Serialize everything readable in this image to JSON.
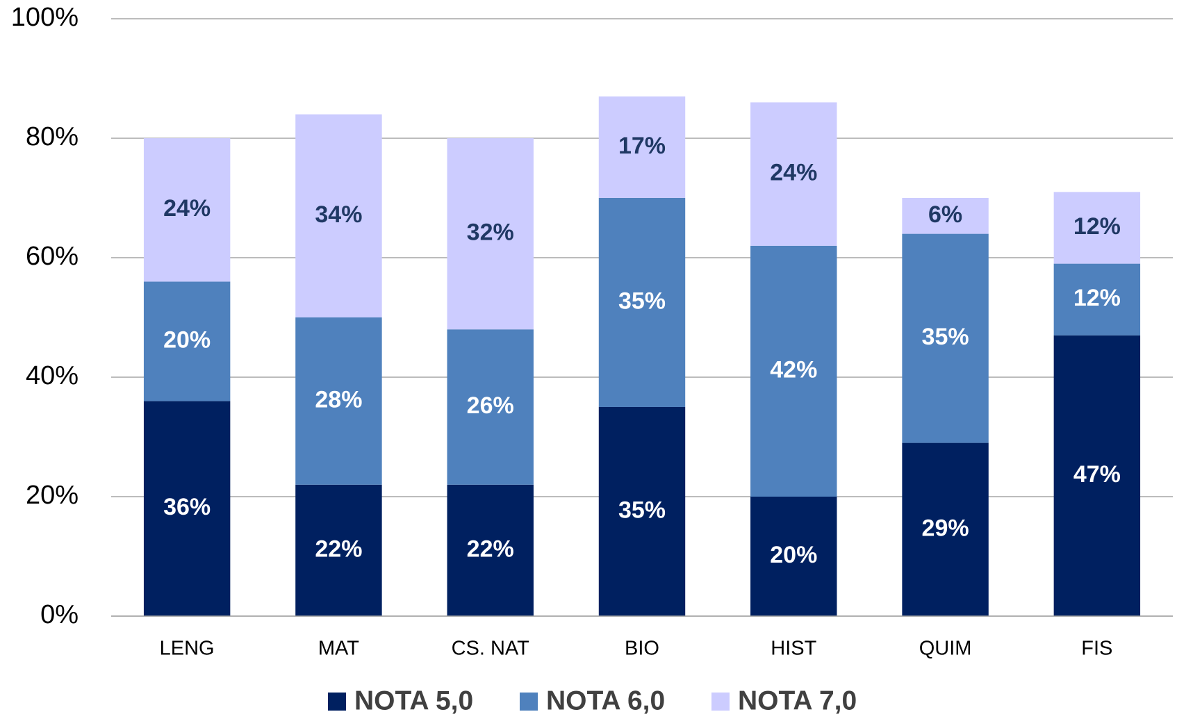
{
  "chart_data": {
    "type": "stacked_bar",
    "categories": [
      "LENG",
      "MAT",
      "CS. NAT",
      "BIO",
      "HIST",
      "QUIM",
      "FIS"
    ],
    "series": [
      {
        "name": "NOTA 5,0",
        "color": "#002060",
        "label_color": "#ffffff",
        "values": [
          36,
          22,
          22,
          35,
          20,
          29,
          47
        ],
        "value_labels": [
          "36%",
          "22%",
          "22%",
          "35%",
          "20%",
          "29%",
          "47%"
        ]
      },
      {
        "name": "NOTA 6,0",
        "color": "#4f81bd",
        "label_color": "#ffffff",
        "values": [
          20,
          28,
          26,
          35,
          42,
          35,
          12
        ],
        "value_labels": [
          "20%",
          "28%",
          "26%",
          "35%",
          "42%",
          "35%",
          "12%"
        ]
      },
      {
        "name": "NOTA 7,0",
        "color": "#ccccff",
        "label_color": "#1f3864",
        "values": [
          24,
          34,
          32,
          17,
          24,
          6,
          12
        ],
        "value_labels": [
          "24%",
          "34%",
          "32%",
          "17%",
          "24%",
          "6%",
          "12%"
        ]
      }
    ],
    "ylim": [
      0,
      100
    ],
    "yticks": [
      {
        "value": 0,
        "label": "0%"
      },
      {
        "value": 20,
        "label": "20%"
      },
      {
        "value": 40,
        "label": "40%"
      },
      {
        "value": 60,
        "label": "60%"
      },
      {
        "value": 80,
        "label": "80%"
      },
      {
        "value": 100,
        "label": "100%"
      }
    ],
    "grid": true,
    "legend": "bottom"
  }
}
